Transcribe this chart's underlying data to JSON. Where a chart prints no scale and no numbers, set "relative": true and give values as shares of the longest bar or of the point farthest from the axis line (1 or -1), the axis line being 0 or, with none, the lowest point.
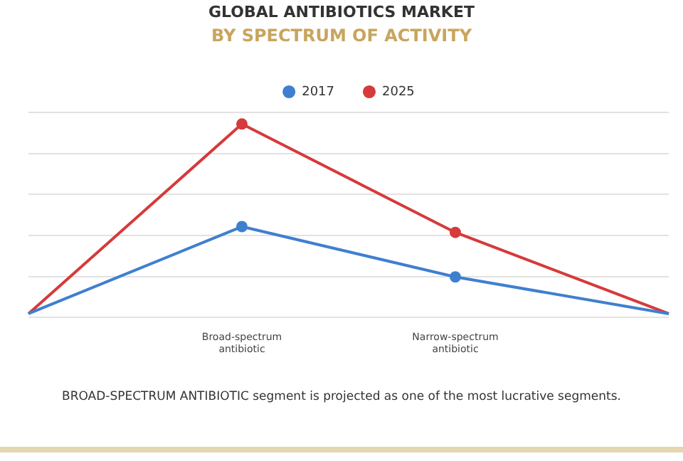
{
  "chart_data": {
    "type": "line",
    "title": "GLOBAL ANTIBIOTICS MARKET",
    "subtitle": "BY SPECTRUM OF ACTIVITY",
    "categories": [
      null,
      "Broad-spectrum antibiotic",
      "Narrow-spectrum antibiotic",
      null
    ],
    "relative": true,
    "series": [
      {
        "name": "2017",
        "color": "#3f7fd0",
        "values": [
          0.02,
          0.47,
          0.21,
          0.02
        ]
      },
      {
        "name": "2025",
        "color": "#d63a3a",
        "values": [
          0.02,
          1,
          0.44,
          0.02
        ]
      }
    ],
    "annotations": [
      "BROAD-SPECTRUM ANTIBIOTIC segment is projected as one of the most lucrative segments."
    ],
    "grid": "y",
    "legend": "top",
    "marker": "circle",
    "line_style": "solid"
  }
}
